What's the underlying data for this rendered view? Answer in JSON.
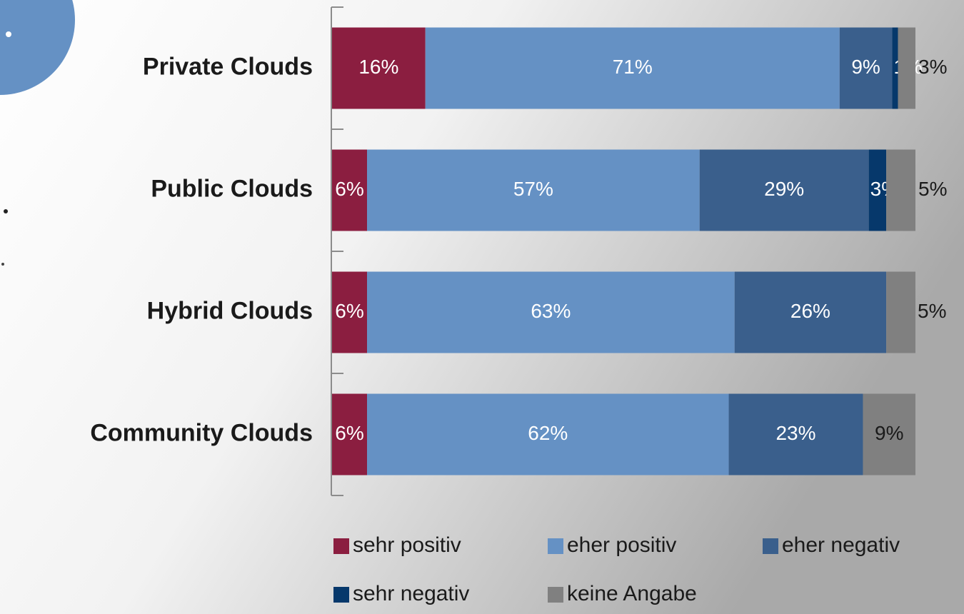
{
  "chart_data": {
    "type": "stacked-bar-horizontal",
    "categories": [
      "Private Clouds",
      "Public Clouds",
      "Hybrid Clouds",
      "Community Clouds"
    ],
    "xlim": [
      0,
      100
    ],
    "series": [
      {
        "name": "sehr positiv",
        "color": "#8b1e40",
        "values": [
          16,
          6,
          6,
          6
        ],
        "value_labels": [
          "16%",
          "6%",
          "6%",
          "6%"
        ]
      },
      {
        "name": "eher positiv",
        "color": "#6591c4",
        "values": [
          71,
          57,
          63,
          62
        ],
        "value_labels": [
          "71%",
          "57%",
          "63%",
          "62%"
        ]
      },
      {
        "name": "eher negativ",
        "color": "#3a5f8c",
        "values": [
          9,
          29,
          26,
          23
        ],
        "value_labels": [
          "9%",
          "29%",
          "26%",
          "23%"
        ]
      },
      {
        "name": "sehr negativ",
        "color": "#06386b",
        "values": [
          1,
          3,
          null,
          null
        ],
        "value_labels": [
          "1%",
          "3%",
          null,
          null
        ]
      },
      {
        "name": "keine Angabe",
        "color": "#808080",
        "values": [
          3,
          5,
          5,
          9
        ],
        "value_labels": [
          "3%",
          "5%",
          "5%",
          "9%"
        ]
      }
    ],
    "legend": "bottom"
  }
}
